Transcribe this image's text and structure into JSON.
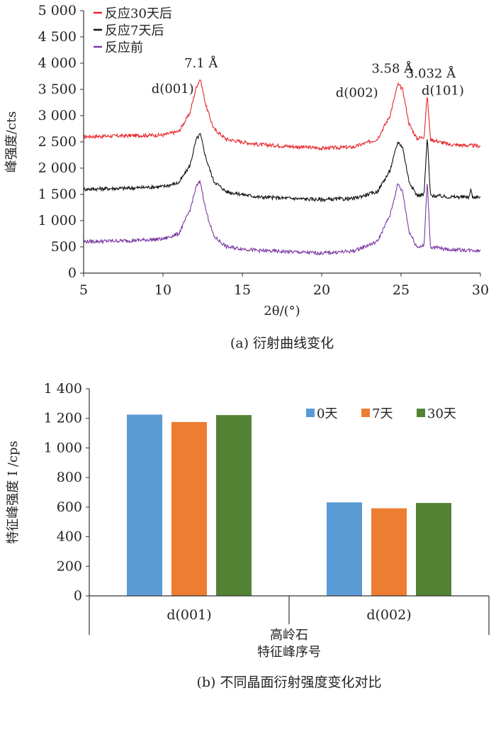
{
  "chart_data": [
    {
      "type": "line",
      "caption": "(a) 衍射曲线变化",
      "xlabel": "2θ/(°)",
      "ylabel": "峰强度/cts",
      "xlim": [
        5,
        30
      ],
      "ylim": [
        0,
        5000
      ],
      "xticks": [
        "5",
        "10",
        "15",
        "20",
        "25",
        "30"
      ],
      "yticks": [
        "0",
        "500",
        "1 000",
        "1 500",
        "2 000",
        "2 500",
        "3 000",
        "3 500",
        "4 000",
        "4 500",
        "5 000"
      ],
      "legend_position": "top-left",
      "series": [
        {
          "name": "反应30天后",
          "color": "#e8262a",
          "x": [
            5,
            8,
            10,
            11,
            11.7,
            12.1,
            12.35,
            12.7,
            13.2,
            14,
            16,
            20,
            22,
            23.5,
            24.3,
            24.8,
            25.1,
            25.5,
            26,
            26.45,
            26.65,
            26.85,
            28,
            30
          ],
          "y": [
            2600,
            2620,
            2630,
            2700,
            3050,
            3550,
            3700,
            3200,
            2750,
            2550,
            2450,
            2380,
            2400,
            2550,
            3000,
            3600,
            3500,
            2850,
            2560,
            2600,
            3400,
            2550,
            2450,
            2420
          ]
        },
        {
          "name": "反应7天后",
          "color": "#111111",
          "x": [
            5,
            8,
            10,
            11,
            11.7,
            12.1,
            12.35,
            12.7,
            13.2,
            14,
            16,
            20,
            22,
            23.5,
            24.3,
            24.8,
            25.1,
            25.5,
            26,
            26.45,
            26.65,
            26.85,
            28,
            29.3,
            29.4,
            29.5,
            30
          ],
          "y": [
            1600,
            1620,
            1650,
            1720,
            2050,
            2550,
            2650,
            2200,
            1750,
            1550,
            1450,
            1400,
            1420,
            1550,
            1950,
            2500,
            2400,
            1750,
            1480,
            1500,
            2600,
            1480,
            1450,
            1450,
            1600,
            1450,
            1450
          ]
        },
        {
          "name": "反应前",
          "color": "#7b3aa3",
          "x": [
            5,
            8,
            10,
            11,
            11.7,
            12.1,
            12.35,
            12.7,
            13.2,
            14,
            16,
            20,
            22,
            23.5,
            24.3,
            24.8,
            25.1,
            25.5,
            26,
            26.45,
            26.65,
            26.85,
            28,
            30
          ],
          "y": [
            600,
            620,
            650,
            750,
            1200,
            1650,
            1750,
            1200,
            700,
            500,
            430,
            380,
            420,
            600,
            1100,
            1700,
            1550,
            800,
            500,
            520,
            1750,
            500,
            450,
            430
          ]
        }
      ],
      "annotations": [
        {
          "text": "7.1 Å",
          "x": 12.4,
          "y": 3700
        },
        {
          "text": "d(001)",
          "x": 12.4,
          "y": 3700
        },
        {
          "text": "3.58 Å",
          "x": 24.9,
          "y": 3600
        },
        {
          "text": "d(002)",
          "x": 24.9,
          "y": 3600
        },
        {
          "text": "3.032 Å",
          "x": 26.65,
          "y": 3400
        },
        {
          "text": "d(101)",
          "x": 26.65,
          "y": 3400
        }
      ]
    },
    {
      "type": "bar",
      "caption": "(b) 不同晶面衍射强度变化对比",
      "xlabel": "高岭石\n特征峰序号",
      "ylabel": "特征峰强度 I /cps",
      "ylim": [
        0,
        1400
      ],
      "yticks": [
        "0",
        "200",
        "400",
        "600",
        "800",
        "1 000",
        "1 200",
        "1 400"
      ],
      "categories": [
        "d(001)",
        "d(002)"
      ],
      "legend_position": "top-right",
      "series": [
        {
          "name": "0天",
          "color": "#5b9bd5",
          "values": [
            1225,
            632
          ]
        },
        {
          "name": "7天",
          "color": "#ed7d31",
          "values": [
            1175,
            592
          ]
        },
        {
          "name": "30天",
          "color": "#548235",
          "values": [
            1222,
            628
          ]
        }
      ]
    }
  ]
}
